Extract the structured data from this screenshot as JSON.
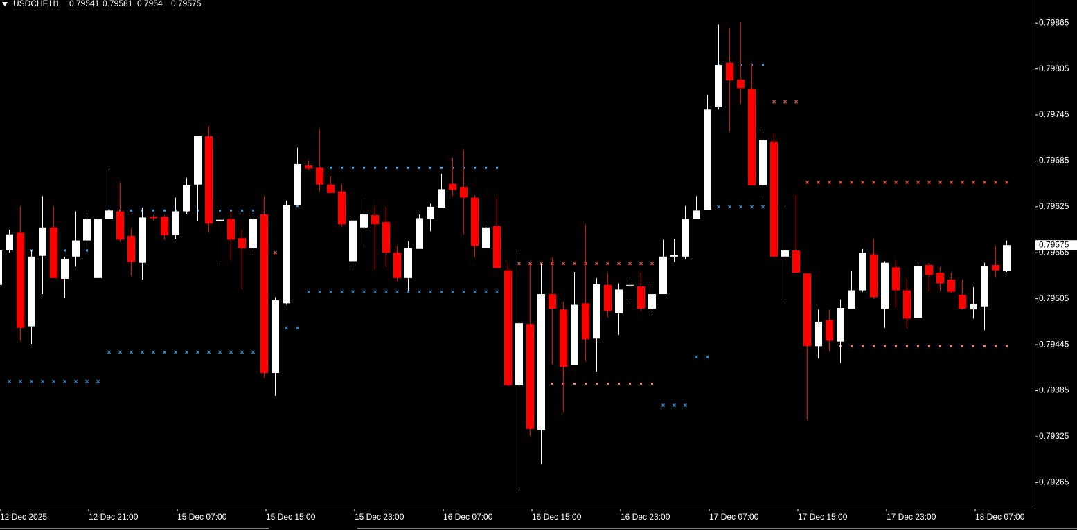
{
  "chart_data": {
    "type": "candlestick",
    "title": "USDCHF,H1",
    "categories": [
      "12 Dec 2025",
      null,
      null,
      null,
      null,
      null,
      null,
      null,
      "12 Dec 21:00",
      null,
      null,
      null,
      null,
      null,
      null,
      null,
      "15 Dec 07:00",
      null,
      null,
      null,
      null,
      null,
      null,
      null,
      "15 Dec 15:00",
      null,
      null,
      null,
      null,
      null,
      null,
      null,
      "15 Dec 23:00",
      null,
      null,
      null,
      null,
      null,
      null,
      null,
      "16 Dec 07:00",
      null,
      null,
      null,
      null,
      null,
      null,
      null,
      "16 Dec 15:00",
      null,
      null,
      null,
      null,
      null,
      null,
      null,
      "16 Dec 23:00",
      null,
      null,
      null,
      null,
      null,
      null,
      null,
      "17 Dec 07:00",
      null,
      null,
      null,
      null,
      null,
      null,
      null,
      "17 Dec 15:00",
      null,
      null,
      null,
      null,
      null,
      null,
      null,
      "17 Dec 23:00",
      null,
      null,
      null,
      null,
      null,
      null,
      null,
      "18 Dec 07:00",
      null,
      null,
      null
    ],
    "open": [
      0.79523,
      0.79568,
      0.79591,
      0.79469,
      0.79561,
      0.79598,
      0.79531,
      0.7956,
      0.79581,
      0.79532,
      0.79609,
      0.79619,
      0.79587,
      0.79552,
      0.79612,
      0.79612,
      0.79588,
      0.79619,
      0.79654,
      0.79717,
      0.79606,
      0.79609,
      0.79584,
      0.79571,
      0.79615,
      0.79408,
      0.79499,
      0.79627,
      0.79679,
      0.79676,
      0.79654,
      0.79645,
      0.79554,
      0.79598,
      0.79614,
      0.79605,
      0.79565,
      0.79532,
      0.7957,
      0.79609,
      0.79624,
      0.79655,
      0.79651,
      0.79637,
      0.79571,
      0.796,
      0.79542,
      0.79392,
      0.79472,
      0.79334,
      0.79511,
      0.79491,
      0.79418,
      0.79499,
      0.79453,
      0.79523,
      0.79486,
      0.79522,
      0.79521,
      0.79492,
      0.79511,
      0.7956,
      0.7956,
      0.79609,
      0.79621,
      0.79755,
      0.79813,
      0.79791,
      0.79779,
      0.79653,
      0.7971,
      0.7956,
      0.79568,
      0.79538,
      0.79443,
      0.79477,
      0.79449,
      0.79492,
      0.79516,
      0.79563,
      0.79492,
      0.79546,
      0.79516,
      0.7948,
      0.79549,
      0.79539,
      0.7953,
      0.7951,
      0.79491,
      0.79495,
      0.79549,
      0.79541
    ],
    "high": [
      0.79574,
      0.79595,
      0.79626,
      0.79568,
      0.79639,
      0.79626,
      0.7956,
      0.79619,
      0.79617,
      0.7961,
      0.79675,
      0.79657,
      0.79596,
      0.79624,
      0.79614,
      0.79614,
      0.79637,
      0.79663,
      0.79717,
      0.7973,
      0.79621,
      0.7962,
      0.79595,
      0.79614,
      0.79639,
      0.79507,
      0.79633,
      0.79702,
      0.79686,
      0.79726,
      0.79665,
      0.79654,
      0.79609,
      0.79635,
      0.79627,
      0.79626,
      0.79574,
      0.7958,
      0.79615,
      0.79629,
      0.79668,
      0.79689,
      0.79699,
      0.7964,
      0.79602,
      0.79639,
      0.79552,
      0.79565,
      0.7955,
      0.79551,
      0.79559,
      0.79501,
      0.7954,
      0.79602,
      0.79532,
      0.79538,
      0.79525,
      0.79527,
      0.7954,
      0.79524,
      0.79582,
      0.79583,
      0.79626,
      0.79639,
      0.79771,
      0.79863,
      0.79859,
      0.79866,
      0.79813,
      0.79722,
      0.79721,
      0.79627,
      0.79641,
      0.79538,
      0.79491,
      0.79491,
      0.79504,
      0.79541,
      0.7957,
      0.79583,
      0.79554,
      0.79555,
      0.79532,
      0.79552,
      0.79552,
      0.79547,
      0.79539,
      0.7953,
      0.7952,
      0.79552,
      0.79574,
      0.79581
    ],
    "low": [
      0.79523,
      0.79565,
      0.7945,
      0.79446,
      0.79511,
      0.79532,
      0.79506,
      0.79547,
      0.7957,
      0.79532,
      0.79609,
      0.79579,
      0.79535,
      0.7953,
      0.79607,
      0.79582,
      0.79583,
      0.79615,
      0.79606,
      0.79591,
      0.79553,
      0.79555,
      0.79517,
      0.79568,
      0.79401,
      0.79378,
      0.79497,
      0.79627,
      0.79673,
      0.79645,
      0.79643,
      0.79599,
      0.79546,
      0.7957,
      0.79542,
      0.79547,
      0.79528,
      0.79515,
      0.7957,
      0.79593,
      0.79624,
      0.79639,
      0.79589,
      0.79559,
      0.79571,
      0.79545,
      0.79391,
      0.79255,
      0.79326,
      0.79289,
      0.79419,
      0.79357,
      0.79418,
      0.79423,
      0.7941,
      0.79481,
      0.79458,
      0.79504,
      0.79488,
      0.79484,
      0.79511,
      0.79553,
      0.79556,
      0.79609,
      0.79621,
      0.79752,
      0.79723,
      0.79759,
      0.79653,
      0.79637,
      0.79559,
      0.79504,
      0.79539,
      0.79347,
      0.79427,
      0.79436,
      0.79421,
      0.79492,
      0.79514,
      0.79505,
      0.79467,
      0.79493,
      0.79467,
      0.7948,
      0.79514,
      0.79515,
      0.79512,
      0.79491,
      0.79479,
      0.79464,
      0.79533,
      0.7954
    ],
    "close": [
      0.79568,
      0.79589,
      0.79467,
      0.7956,
      0.79598,
      0.79532,
      0.79557,
      0.79581,
      0.79609,
      0.79609,
      0.7962,
      0.79582,
      0.79553,
      0.79611,
      0.7961,
      0.79588,
      0.79619,
      0.79653,
      0.79717,
      0.79603,
      0.79608,
      0.79582,
      0.79571,
      0.79609,
      0.79408,
      0.79503,
      0.79627,
      0.79681,
      0.79675,
      0.79654,
      0.79643,
      0.79602,
      0.79607,
      0.79615,
      0.79602,
      0.79565,
      0.79532,
      0.79571,
      0.7961,
      0.79625,
      0.79648,
      0.79647,
      0.79637,
      0.79574,
      0.79598,
      0.79545,
      0.79392,
      0.79473,
      0.79335,
      0.79511,
      0.79492,
      0.79416,
      0.79497,
      0.79452,
      0.79524,
      0.79489,
      0.79517,
      0.79523,
      0.79492,
      0.79511,
      0.7956,
      0.79562,
      0.79609,
      0.7962,
      0.79752,
      0.7981,
      0.7979,
      0.7978,
      0.79653,
      0.79712,
      0.7956,
      0.79568,
      0.79539,
      0.79443,
      0.79475,
      0.7945,
      0.79493,
      0.79516,
      0.79565,
      0.79507,
      0.79552,
      0.79516,
      0.79479,
      0.79548,
      0.79536,
      0.79525,
      0.79514,
      0.79492,
      0.79498,
      0.79548,
      0.79542,
      0.79575
    ],
    "up_color": "#ffffff",
    "down_color": "#ff0000",
    "ylim": [
      0.79231,
      0.79895
    ],
    "yticks": [
      0.79865,
      0.79805,
      0.79745,
      0.79685,
      0.79625,
      0.79565,
      0.79505,
      0.79445,
      0.79385,
      0.79325,
      0.79265
    ],
    "grid": false,
    "levels": [
      {
        "price": 0.79397,
        "from": 1,
        "to": 9,
        "marker": "cross",
        "color": "#2f9fe6"
      },
      {
        "price": 0.79568,
        "from": 3,
        "to": 9,
        "marker": "dot",
        "color": "#2f9fe6"
      },
      {
        "price": 0.7962,
        "from": 10,
        "to": 23,
        "marker": "dot",
        "color": "#2f9fe6"
      },
      {
        "price": 0.79435,
        "from": 10,
        "to": 23,
        "marker": "cross",
        "color": "#2f9fe6"
      },
      {
        "price": 0.79565,
        "from": 25,
        "to": 25,
        "marker": "cross",
        "color": "#ff5a4a"
      },
      {
        "price": 0.79626,
        "from": 26,
        "to": 27,
        "marker": "dot",
        "color": "#2f9fe6"
      },
      {
        "price": 0.79467,
        "from": 26,
        "to": 27,
        "marker": "cross",
        "color": "#2f9fe6"
      },
      {
        "price": 0.79676,
        "from": 30,
        "to": 45,
        "marker": "dot",
        "color": "#2f9fe6"
      },
      {
        "price": 0.79514,
        "from": 28,
        "to": 45,
        "marker": "cross",
        "color": "#2f9fe6"
      },
      {
        "price": 0.79551,
        "from": 47,
        "to": 59,
        "marker": "cross",
        "color": "#ff5a4a"
      },
      {
        "price": 0.79394,
        "from": 47,
        "to": 59,
        "marker": "dot",
        "color": "#f08060"
      },
      {
        "price": 0.79366,
        "from": 60,
        "to": 62,
        "marker": "cross",
        "color": "#2f9fe6"
      },
      {
        "price": 0.79429,
        "from": 63,
        "to": 64,
        "marker": "cross",
        "color": "#2f9fe6"
      },
      {
        "price": 0.7981,
        "from": 65,
        "to": 69,
        "marker": "dot",
        "color": "#2f9fe6"
      },
      {
        "price": 0.79625,
        "from": 65,
        "to": 69,
        "marker": "cross",
        "color": "#2f9fe6"
      },
      {
        "price": 0.79762,
        "from": 70,
        "to": 72,
        "marker": "cross",
        "color": "#ff5a4a"
      },
      {
        "price": 0.79657,
        "from": 73,
        "to": 91,
        "marker": "cross",
        "color": "#ff5a4a"
      },
      {
        "price": 0.79443,
        "from": 76,
        "to": 91,
        "marker": "dot",
        "color": "#f08060"
      }
    ]
  }
}
